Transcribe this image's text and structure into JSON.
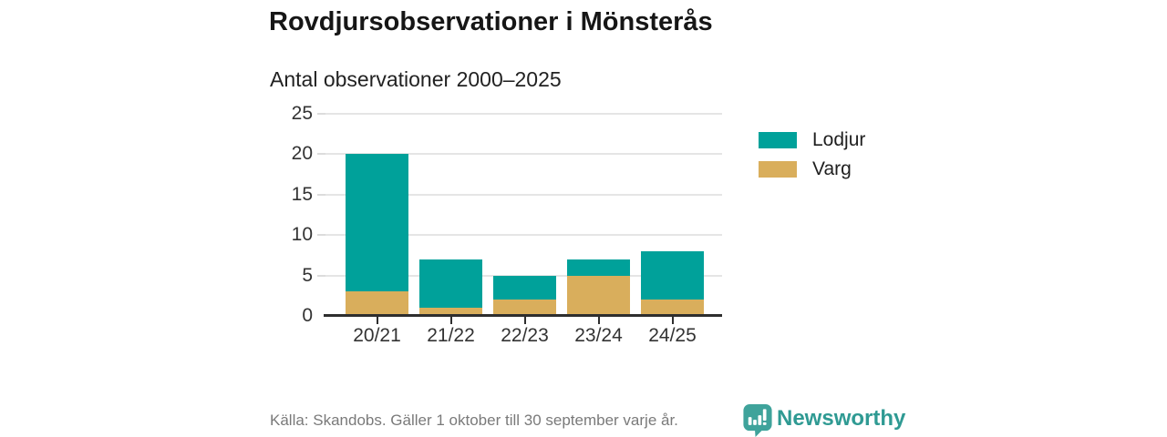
{
  "title": "Rovdjursobservationer i Mönsterås",
  "subtitle": "Antal observationer 2000–2025",
  "footer": {
    "source": "Källa: Skandobs. Gäller 1 oktober till 30 september varje år.",
    "brand": "Newsworthy"
  },
  "colors": {
    "lodjur": "#00a19a",
    "varg": "#d9ae5c",
    "grid": "#e5e5e5",
    "axis": "#2e2e2e",
    "logo_teal": "#3fa39b",
    "wordmark_teal": "#2f9a93"
  },
  "legend": [
    {
      "label": "Lodjur",
      "color": "#00a19a"
    },
    {
      "label": "Varg",
      "color": "#d9ae5c"
    }
  ],
  "chart_data": {
    "type": "bar",
    "stacked": true,
    "title": "Rovdjursobservationer i Mönsterås",
    "subtitle": "Antal observationer 2000–2025",
    "categories": [
      "20/21",
      "21/22",
      "22/23",
      "23/24",
      "24/25"
    ],
    "series": [
      {
        "name": "Lodjur",
        "color": "#00a19a",
        "values": [
          17,
          6,
          3,
          2,
          6
        ]
      },
      {
        "name": "Varg",
        "color": "#d9ae5c",
        "values": [
          3,
          1,
          2,
          5,
          2
        ]
      }
    ],
    "stack_bottom_to_top": [
      "Varg",
      "Lodjur"
    ],
    "totals": [
      20,
      7,
      5,
      7,
      8
    ],
    "xlabel": "",
    "ylabel": "",
    "ylim": [
      0,
      25
    ],
    "yticks": [
      0,
      5,
      10,
      15,
      20,
      25
    ],
    "grid": true,
    "legend_position": "right"
  }
}
